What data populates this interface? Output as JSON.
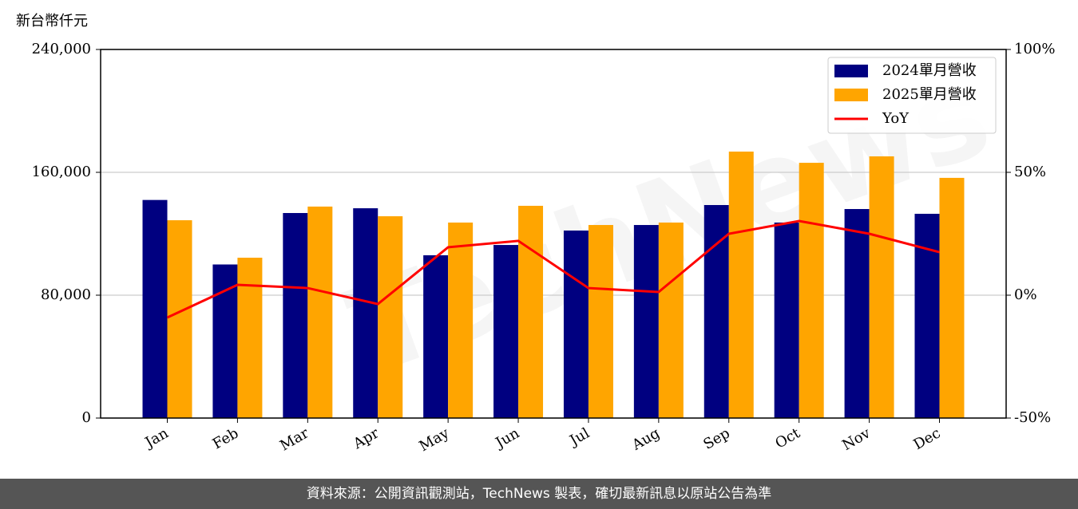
{
  "chart_data": {
    "type": "bar-line",
    "y_label": "新台幣仟元",
    "watermark": "TechNews",
    "footer": "資料來源：公開資訊觀測站，TechNews 製表，確切最新訊息以原站公告為準",
    "categories": [
      "Jan",
      "Feb",
      "Mar",
      "Apr",
      "May",
      "Jun",
      "Jul",
      "Aug",
      "Sep",
      "Oct",
      "Nov",
      "Dec"
    ],
    "series": [
      {
        "name": "2024單月營收",
        "color": "#000080",
        "type": "bar",
        "values": [
          142000,
          100000,
          133500,
          136600,
          106000,
          112700,
          122100,
          125700,
          138700,
          127300,
          136100,
          133000
        ]
      },
      {
        "name": "2025單月營收",
        "color": "#ffa500",
        "type": "bar",
        "values": [
          128800,
          104400,
          137700,
          131400,
          127300,
          138200,
          125700,
          127300,
          173500,
          166200,
          170400,
          156400
        ]
      },
      {
        "name": "YoY",
        "color": "#ff0000",
        "type": "line",
        "axis": "y2",
        "values": [
          -9.1,
          4.2,
          2.9,
          -3.6,
          19.5,
          22.1,
          2.9,
          1.3,
          25.0,
          30.2,
          25.0,
          17.5
        ]
      }
    ],
    "ylim": [
      0,
      240000
    ],
    "yticks": [
      0,
      {
        "value": 80000,
        "label": "80,000"
      },
      {
        "value": 160000,
        "label": "160,000"
      },
      {
        "value": 240000,
        "label": "240,000"
      }
    ],
    "y2lim": [
      -50,
      100
    ],
    "y2ticks": [
      {
        "value": -50,
        "label": "-50%"
      },
      {
        "value": 0,
        "label": "0%"
      },
      {
        "value": 50,
        "label": "50%"
      },
      {
        "value": 100,
        "label": "100%"
      }
    ],
    "grid": true,
    "legend": "upper right"
  }
}
